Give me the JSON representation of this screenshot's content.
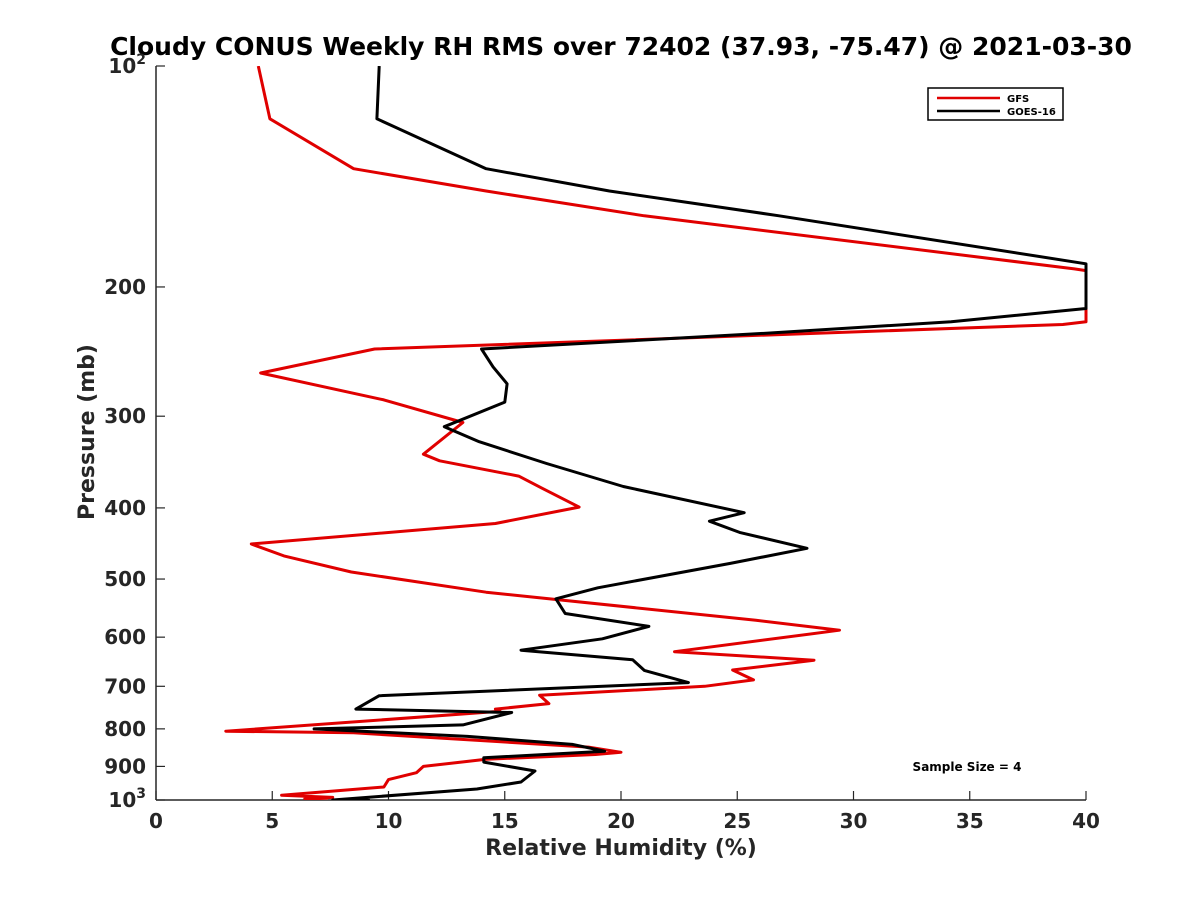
{
  "chart_data": {
    "type": "line",
    "title": "Cloudy CONUS Weekly RH RMS over 72402 (37.93, -75.47) @ 2021-03-30",
    "xlabel": "Relative Humidity (%)",
    "ylabel": "Pressure (mb)",
    "xlim": [
      0,
      40
    ],
    "ylim": [
      100,
      1000
    ],
    "y_scale": "log",
    "y_reversed": true,
    "x_ticks": [
      "0",
      "5",
      "10",
      "15",
      "20",
      "25",
      "30",
      "35",
      "40"
    ],
    "y_ticks": [
      {
        "value": 100,
        "label": "10",
        "sup": "2"
      },
      {
        "value": 200,
        "label": "200",
        "sup": ""
      },
      {
        "value": 300,
        "label": "300",
        "sup": ""
      },
      {
        "value": 400,
        "label": "400",
        "sup": ""
      },
      {
        "value": 500,
        "label": "500",
        "sup": ""
      },
      {
        "value": 600,
        "label": "600",
        "sup": ""
      },
      {
        "value": 700,
        "label": "700",
        "sup": ""
      },
      {
        "value": 800,
        "label": "800",
        "sup": ""
      },
      {
        "value": 900,
        "label": "900",
        "sup": ""
      },
      {
        "value": 1000,
        "label": "10",
        "sup": "3"
      }
    ],
    "legend_position": "top-right",
    "grid": false,
    "annotation": "Sample Size = 4",
    "series": [
      {
        "name": "GFS",
        "color": "#e00000",
        "points": [
          [
            4.4,
            100
          ],
          [
            4.9,
            118
          ],
          [
            8.5,
            138
          ],
          [
            14.2,
            148
          ],
          [
            21.0,
            160
          ],
          [
            39.5,
            189
          ],
          [
            40.0,
            190
          ],
          [
            40.0,
            223
          ],
          [
            39.0,
            225
          ],
          [
            9.4,
            243
          ],
          [
            4.5,
            262
          ],
          [
            9.8,
            285
          ],
          [
            13.2,
            306
          ],
          [
            11.5,
            338
          ],
          [
            12.2,
            345
          ],
          [
            15.6,
            362
          ],
          [
            16.6,
            376
          ],
          [
            18.2,
            399
          ],
          [
            14.6,
            420
          ],
          [
            4.1,
            448
          ],
          [
            5.5,
            465
          ],
          [
            8.4,
            489
          ],
          [
            14.2,
            521
          ],
          [
            25.8,
            569
          ],
          [
            29.4,
            587
          ],
          [
            22.3,
            628
          ],
          [
            28.3,
            645
          ],
          [
            24.8,
            665
          ],
          [
            25.7,
            686
          ],
          [
            23.6,
            700
          ],
          [
            16.5,
            720
          ],
          [
            16.9,
            739
          ],
          [
            14.6,
            752
          ],
          [
            14.8,
            757
          ],
          [
            3.0,
            806
          ],
          [
            8.5,
            810
          ],
          [
            18.6,
            847
          ],
          [
            20.0,
            861
          ],
          [
            18.9,
            867
          ],
          [
            14.2,
            880
          ],
          [
            11.5,
            900
          ],
          [
            11.2,
            918
          ],
          [
            10.0,
            938
          ],
          [
            9.8,
            960
          ],
          [
            5.4,
            985
          ],
          [
            7.6,
            992
          ],
          [
            6.4,
            996
          ],
          [
            7.4,
            1000
          ]
        ]
      },
      {
        "name": "GOES-16",
        "color": "#000000",
        "points": [
          [
            9.6,
            100
          ],
          [
            9.5,
            118
          ],
          [
            14.2,
            138
          ],
          [
            19.5,
            148
          ],
          [
            26.8,
            160
          ],
          [
            40.0,
            186
          ],
          [
            40.0,
            214
          ],
          [
            34.2,
            223
          ],
          [
            26.5,
            231
          ],
          [
            14.0,
            243
          ],
          [
            14.5,
            257
          ],
          [
            15.1,
            271
          ],
          [
            15.0,
            287
          ],
          [
            12.4,
            310
          ],
          [
            13.9,
            325
          ],
          [
            16.8,
            348
          ],
          [
            20.1,
            374
          ],
          [
            25.3,
            406
          ],
          [
            23.8,
            417
          ],
          [
            25.1,
            432
          ],
          [
            28.0,
            454
          ],
          [
            24.7,
            476
          ],
          [
            19.0,
            514
          ],
          [
            17.2,
            532
          ],
          [
            17.6,
            557
          ],
          [
            21.2,
            580
          ],
          [
            19.2,
            603
          ],
          [
            15.7,
            625
          ],
          [
            20.5,
            644
          ],
          [
            21.0,
            666
          ],
          [
            22.9,
            692
          ],
          [
            9.6,
            721
          ],
          [
            8.6,
            752
          ],
          [
            15.3,
            760
          ],
          [
            13.2,
            790
          ],
          [
            6.8,
            800
          ],
          [
            13.4,
            819
          ],
          [
            17.9,
            840
          ],
          [
            19.3,
            858
          ],
          [
            14.1,
            876
          ],
          [
            14.1,
            888
          ],
          [
            16.3,
            913
          ],
          [
            15.7,
            945
          ],
          [
            13.8,
            966
          ],
          [
            7.6,
            1000
          ],
          [
            9.2,
            1000
          ]
        ]
      }
    ]
  }
}
